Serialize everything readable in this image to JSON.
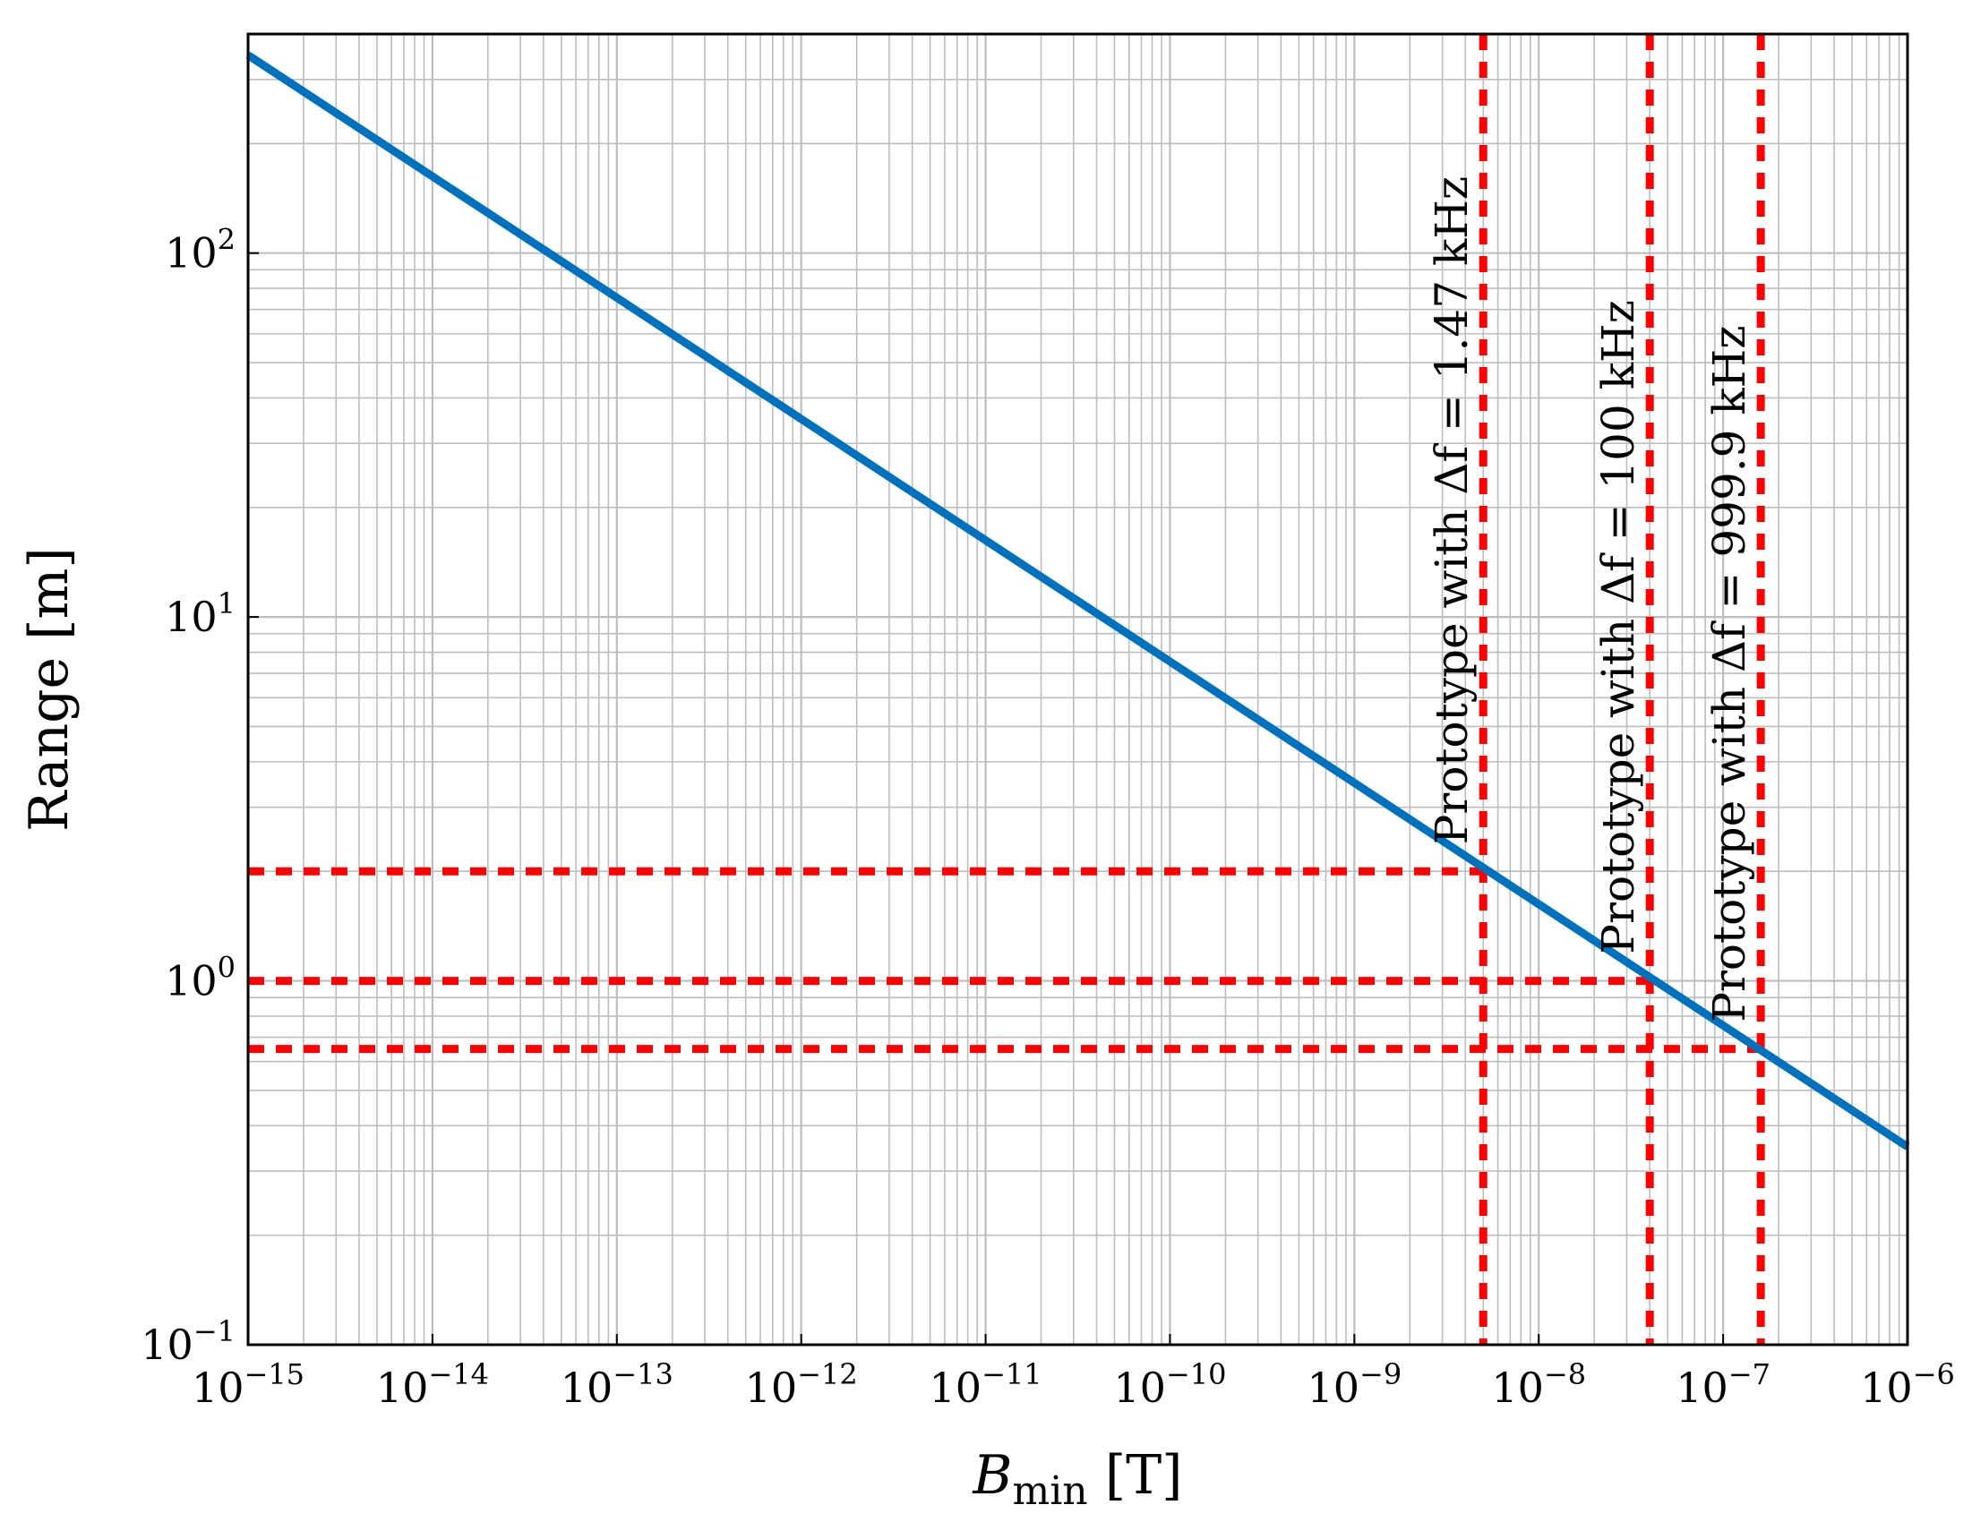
{
  "chart_data": {
    "type": "line",
    "title": "",
    "xlabel": "B_min [T]",
    "xlabel_main": "B",
    "xlabel_sub": "min",
    "xlabel_unit": " [T]",
    "ylabel": "Range [m]",
    "x_scale": "log",
    "y_scale": "log",
    "xlim": [
      1e-15,
      1e-06
    ],
    "ylim": [
      0.1,
      400
    ],
    "grid": true,
    "x_ticks": [
      {
        "base": "10",
        "exp": "−15",
        "value": 1e-15
      },
      {
        "base": "10",
        "exp": "−14",
        "value": 1e-14
      },
      {
        "base": "10",
        "exp": "−13",
        "value": 1e-13
      },
      {
        "base": "10",
        "exp": "−12",
        "value": 1e-12
      },
      {
        "base": "10",
        "exp": "−11",
        "value": 1e-11
      },
      {
        "base": "10",
        "exp": "−10",
        "value": 1e-10
      },
      {
        "base": "10",
        "exp": "−9",
        "value": 1e-09
      },
      {
        "base": "10",
        "exp": "−8",
        "value": 1e-08
      },
      {
        "base": "10",
        "exp": "−7",
        "value": 1e-07
      },
      {
        "base": "10",
        "exp": "−6",
        "value": 1e-06
      }
    ],
    "y_ticks": [
      {
        "base": "10",
        "exp": "−1",
        "value": 0.1
      },
      {
        "base": "10",
        "exp": "0",
        "value": 1
      },
      {
        "base": "10",
        "exp": "1",
        "value": 10
      },
      {
        "base": "10",
        "exp": "2",
        "value": 100
      }
    ],
    "series": [
      {
        "color": "#0072bd",
        "x": [
          1e-15,
          1e-06
        ],
        "y": [
          350,
          0.35
        ]
      }
    ],
    "reference_lines": [
      {
        "x": 5e-09,
        "y": 2.0,
        "label": "Prototype with Δf = 1.47 kHz",
        "color": "#ff0000"
      },
      {
        "x": 4e-08,
        "y": 1.0,
        "label": "Prototype with Δf = 100 kHz",
        "color": "#ff0000"
      },
      {
        "x": 1.6e-07,
        "y": 0.65,
        "label": "Prototype with Δf = 999.9 kHz",
        "color": "#ff0000"
      }
    ]
  }
}
